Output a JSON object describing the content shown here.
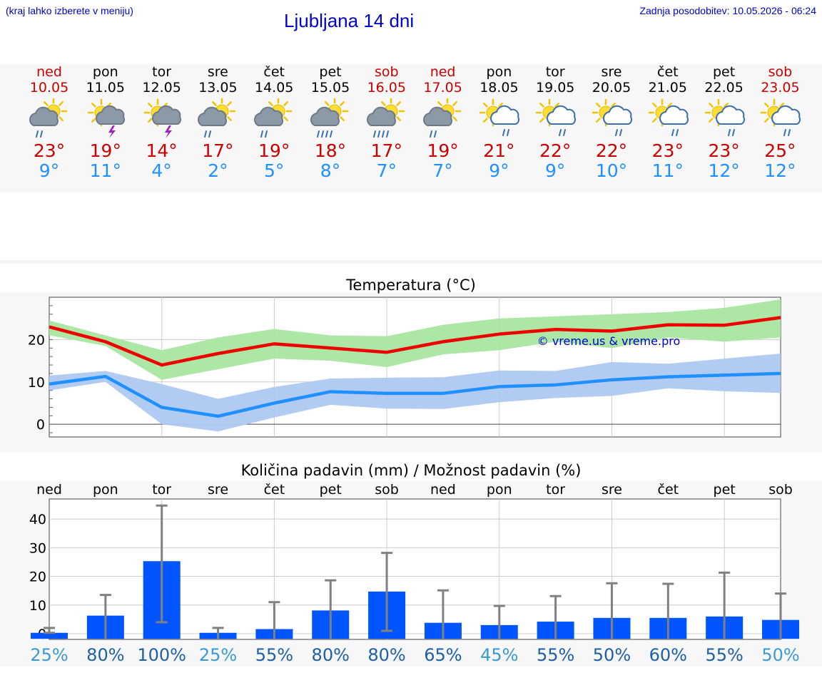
{
  "header": {
    "menu_hint": "(kraj lahko izberete v meniju)",
    "title": "Ljubljana 14 dni",
    "updated": "Zadnja posodobitev: 10.05.2026 - 06:24"
  },
  "days": [
    {
      "name": "ned",
      "date": "10.05",
      "weekend": true,
      "icon": "partly-sunny-rain-icon",
      "tmax": "23°",
      "tmin": "9°"
    },
    {
      "name": "pon",
      "date": "11.05",
      "weekend": false,
      "icon": "sun-thunderstorm-icon",
      "tmax": "19°",
      "tmin": "11°"
    },
    {
      "name": "tor",
      "date": "12.05",
      "weekend": false,
      "icon": "sun-thunderstorm-icon",
      "tmax": "14°",
      "tmin": "4°"
    },
    {
      "name": "sre",
      "date": "13.05",
      "weekend": false,
      "icon": "partly-sunny-rain-icon",
      "tmax": "17°",
      "tmin": "2°"
    },
    {
      "name": "čet",
      "date": "14.05",
      "weekend": false,
      "icon": "partly-sunny-rain-icon",
      "tmax": "19°",
      "tmin": "5°"
    },
    {
      "name": "pet",
      "date": "15.05",
      "weekend": false,
      "icon": "partly-sunny-heavy-rain-icon",
      "tmax": "18°",
      "tmin": "8°"
    },
    {
      "name": "sob",
      "date": "16.05",
      "weekend": true,
      "icon": "partly-sunny-heavy-rain-icon",
      "tmax": "17°",
      "tmin": "7°"
    },
    {
      "name": "ned",
      "date": "17.05",
      "weekend": true,
      "icon": "partly-sunny-rain-icon",
      "tmax": "19°",
      "tmin": "7°"
    },
    {
      "name": "pon",
      "date": "18.05",
      "weekend": false,
      "icon": "sun-cloud-light-rain-icon",
      "tmax": "21°",
      "tmin": "9°"
    },
    {
      "name": "tor",
      "date": "19.05",
      "weekend": false,
      "icon": "sun-cloud-light-rain-icon",
      "tmax": "22°",
      "tmin": "9°"
    },
    {
      "name": "sre",
      "date": "20.05",
      "weekend": false,
      "icon": "sun-cloud-light-rain-icon",
      "tmax": "22°",
      "tmin": "10°"
    },
    {
      "name": "čet",
      "date": "21.05",
      "weekend": false,
      "icon": "sun-cloud-light-rain-icon",
      "tmax": "23°",
      "tmin": "11°"
    },
    {
      "name": "pet",
      "date": "22.05",
      "weekend": false,
      "icon": "sun-cloud-light-rain-icon",
      "tmax": "23°",
      "tmin": "12°"
    },
    {
      "name": "sob",
      "date": "23.05",
      "weekend": true,
      "icon": "sun-cloud-light-rain-icon",
      "tmax": "25°",
      "tmin": "12°"
    }
  ],
  "colors": {
    "weekend": "#cc0000",
    "max_line": "#ee0000",
    "max_band": "#a8e6a0",
    "min_line": "#1e90ff",
    "min_band": "#aec8f2",
    "bar": "#0055ff",
    "whisker": "#808080",
    "pct_dark": "#1f5fa8",
    "pct_light": "#3a9ad9"
  },
  "chart_data": [
    {
      "type": "line",
      "title": "Temperatura (°C)",
      "watermark": "© vreme.us & vreme.pro",
      "x": [
        "10.05",
        "11.05",
        "12.05",
        "13.05",
        "14.05",
        "15.05",
        "16.05",
        "17.05",
        "18.05",
        "19.05",
        "20.05",
        "21.05",
        "22.05",
        "23.05"
      ],
      "ylim": [
        -3,
        30
      ],
      "yticks": [
        0,
        10,
        20
      ],
      "grid": true,
      "series": [
        {
          "key": "max",
          "values": [
            23,
            19.5,
            14,
            16.7,
            19,
            18,
            17,
            19.5,
            21.3,
            22.4,
            22,
            23.5,
            23.4,
            25.2
          ],
          "band_low": [
            21,
            18.5,
            10.5,
            13,
            15.5,
            15,
            13.5,
            16.5,
            17.5,
            19.5,
            18,
            20.5,
            19.5,
            20.5
          ],
          "band_high": [
            24.5,
            21,
            17.5,
            20.5,
            22.5,
            21,
            20.8,
            23.5,
            25,
            25.5,
            26,
            26.5,
            27.5,
            29.5
          ]
        },
        {
          "key": "min",
          "values": [
            9.5,
            11.3,
            4,
            1.9,
            5,
            7.7,
            7.3,
            7.3,
            8.9,
            9.3,
            10.5,
            11.2,
            11.6,
            12
          ],
          "band_low": [
            8,
            10,
            0,
            -1.7,
            1.6,
            4.6,
            3.7,
            3.6,
            5.2,
            6.2,
            6.7,
            8.5,
            7.8,
            7.4
          ],
          "band_high": [
            11.5,
            12.6,
            9.5,
            6,
            8.8,
            10.8,
            11,
            11.1,
            12.7,
            12.6,
            14.7,
            14.3,
            15.5,
            16.7
          ]
        }
      ]
    },
    {
      "type": "bar",
      "title": "Količina padavin (mm) / Možnost padavin (%)",
      "categories": [
        "ned",
        "pon",
        "tor",
        "sre",
        "čet",
        "pet",
        "sob",
        "ned",
        "pon",
        "tor",
        "sre",
        "čet",
        "pet",
        "sob"
      ],
      "ylim": [
        -2,
        47
      ],
      "yticks": [
        0,
        10,
        20,
        30,
        40
      ],
      "grid": true,
      "values": [
        0.3,
        6.3,
        25.3,
        0.3,
        1.6,
        8.1,
        14.7,
        3.8,
        3.0,
        4.2,
        5.5,
        5.5,
        6.0,
        4.8
      ],
      "error_low": [
        0.3,
        0,
        4,
        0,
        0,
        0,
        1,
        0,
        0,
        0,
        0,
        0,
        0,
        0
      ],
      "error_high": [
        2,
        13.5,
        44.7,
        2,
        11,
        18.6,
        28.2,
        15.1,
        9.7,
        13.1,
        17.6,
        17.4,
        21.3,
        14
      ],
      "probability": [
        "25%",
        "80%",
        "100%",
        "25%",
        "55%",
        "80%",
        "80%",
        "65%",
        "45%",
        "55%",
        "50%",
        "60%",
        "55%",
        "50%"
      ],
      "probability_shade": [
        "light",
        "dark",
        "dark",
        "light",
        "dark",
        "dark",
        "dark",
        "dark",
        "light",
        "dark",
        "dark",
        "dark",
        "dark",
        "light"
      ]
    }
  ]
}
